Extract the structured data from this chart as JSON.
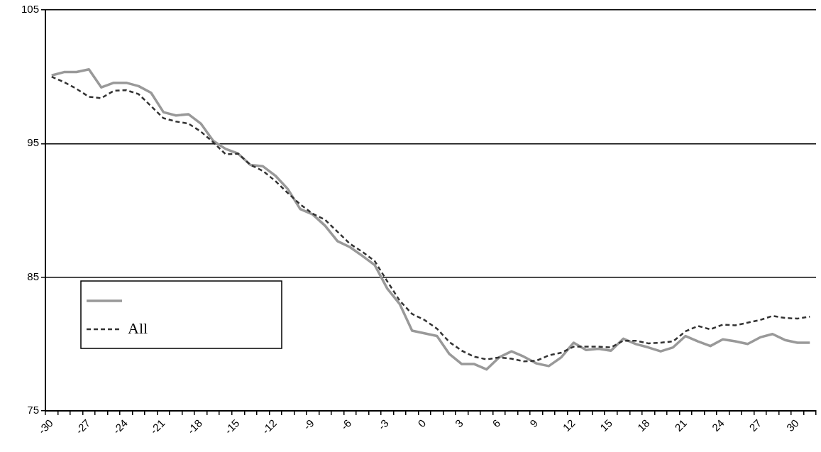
{
  "chart_data": {
    "type": "line",
    "categories": [
      "-30",
      null,
      null,
      "-27",
      null,
      null,
      "-24",
      null,
      null,
      "-21",
      null,
      null,
      "-18",
      null,
      null,
      "-15",
      null,
      null,
      "-12",
      null,
      null,
      "-9",
      null,
      null,
      "-6",
      null,
      null,
      "-3",
      null,
      null,
      "0",
      null,
      null,
      "3",
      null,
      null,
      "6",
      null,
      null,
      "9",
      null,
      null,
      "12",
      null,
      null,
      "15",
      null,
      null,
      "18",
      null,
      null,
      "21",
      null,
      null,
      "24",
      null,
      null,
      "27",
      null,
      null,
      "30",
      null
    ],
    "series": [
      {
        "color": "#999999",
        "line_style": "solid",
        "values": [
          100.1,
          100.35,
          100.35,
          100.55,
          99.2,
          99.55,
          99.55,
          99.3,
          98.8,
          97.35,
          97.1,
          97.2,
          96.5,
          95.2,
          94.6,
          94.25,
          93.4,
          93.3,
          92.6,
          91.6,
          90.1,
          89.7,
          88.85,
          87.7,
          87.25,
          86.6,
          85.9,
          84.15,
          83.0,
          81.0,
          80.8,
          80.6,
          79.25,
          78.5,
          78.5,
          78.1,
          79.0,
          79.45,
          79.05,
          78.55,
          78.35,
          79.0,
          80.1,
          79.55,
          79.65,
          79.5,
          80.4,
          80.0,
          79.75,
          79.45,
          79.75,
          80.6,
          80.2,
          79.85,
          80.35,
          80.2,
          80.0,
          80.5,
          80.75,
          80.3,
          80.1,
          80.1
        ]
      },
      {
        "name": "All",
        "color": "#333333",
        "line_style": "dashed",
        "values": [
          100.0,
          99.6,
          99.1,
          98.5,
          98.4,
          98.95,
          99.0,
          98.7,
          97.8,
          96.9,
          96.65,
          96.5,
          95.9,
          95.1,
          94.2,
          94.25,
          93.4,
          92.95,
          92.2,
          91.3,
          90.45,
          89.75,
          89.3,
          88.4,
          87.5,
          86.9,
          86.2,
          84.7,
          83.25,
          82.25,
          81.8,
          81.15,
          80.15,
          79.5,
          79.05,
          78.85,
          79.0,
          78.9,
          78.7,
          78.75,
          79.15,
          79.35,
          79.8,
          79.8,
          79.8,
          79.75,
          80.25,
          80.25,
          80.05,
          80.1,
          80.2,
          80.95,
          81.35,
          81.1,
          81.45,
          81.4,
          81.6,
          81.8,
          82.1,
          81.95,
          81.9,
          82.05
        ]
      }
    ],
    "ylim": [
      75,
      105
    ],
    "yticks": [
      75,
      85,
      95,
      105
    ],
    "grid": "y",
    "legend": "bottom left",
    "marker": "none"
  }
}
